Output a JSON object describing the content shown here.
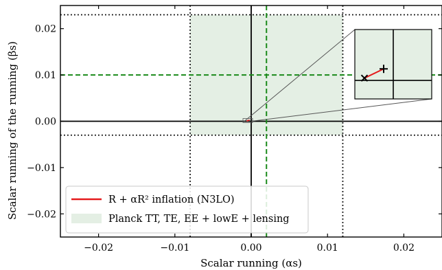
{
  "chart_data": {
    "type": "scatter",
    "title": "",
    "xlabel": "Scalar running (αs)",
    "ylabel": "Scalar running of the running (βs)",
    "xlim": [
      -0.025,
      0.025
    ],
    "ylim": [
      -0.025,
      0.025
    ],
    "x_ticks": [
      -0.02,
      -0.01,
      0.0,
      0.01,
      0.02
    ],
    "x_tick_labels": [
      "−0.02",
      "−0.01",
      "0.00",
      "0.01",
      "0.02"
    ],
    "y_ticks": [
      -0.02,
      -0.01,
      0.0,
      0.01,
      0.02
    ],
    "y_tick_labels": [
      "−0.02",
      "−0.01",
      "0.00",
      "0.01",
      "0.02"
    ],
    "grid": false,
    "legend_position": "lower-left",
    "series": [
      {
        "name": "R + αR² inflation (N3LO)",
        "kind": "line",
        "color": "#e41a1c",
        "x": [
          -0.0006,
          -0.0002
        ],
        "y": [
          5e-05,
          0.00025
        ]
      }
    ],
    "planck_region": {
      "name": "Planck TT, TE, EE + lowE + lensing",
      "color": "#e4efe4",
      "x": [
        -0.008,
        0.012
      ],
      "y": [
        -0.003,
        0.023
      ],
      "central_x": 0.002,
      "central_y": 0.01,
      "central_line_color": "#1a8a1a"
    },
    "reference_lines": {
      "zero_x": 0.0,
      "zero_y": 0.0,
      "bound_lines_x": [
        -0.008,
        0.012
      ],
      "bound_lines_y": [
        -0.003,
        0.023
      ]
    },
    "inset": {
      "x_range": [
        -0.0008,
        0.0008
      ],
      "y_range": [
        -0.0004,
        0.0011
      ],
      "start_marker": "×",
      "end_marker": "+"
    }
  }
}
